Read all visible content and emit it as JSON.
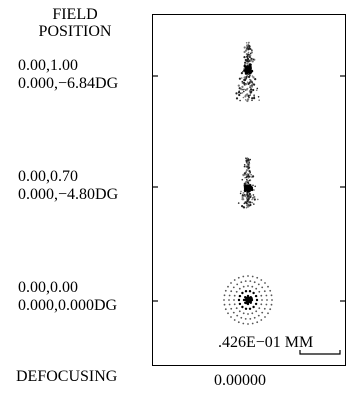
{
  "header": {
    "line1": "FIELD",
    "line2": "POSITION"
  },
  "fields": [
    {
      "line1": "0.00,1.00",
      "line2": "0.000,−6.84DG"
    },
    {
      "line1": "0.00,0.70",
      "line2": "0.000,−4.80DG"
    },
    {
      "line1": "0.00,0.00",
      "line2": "0.000,0.000DG"
    }
  ],
  "scale": {
    "label": ".426E−01 MM"
  },
  "footer": {
    "label": "DEFOCUSING",
    "value": "0.00000"
  }
}
